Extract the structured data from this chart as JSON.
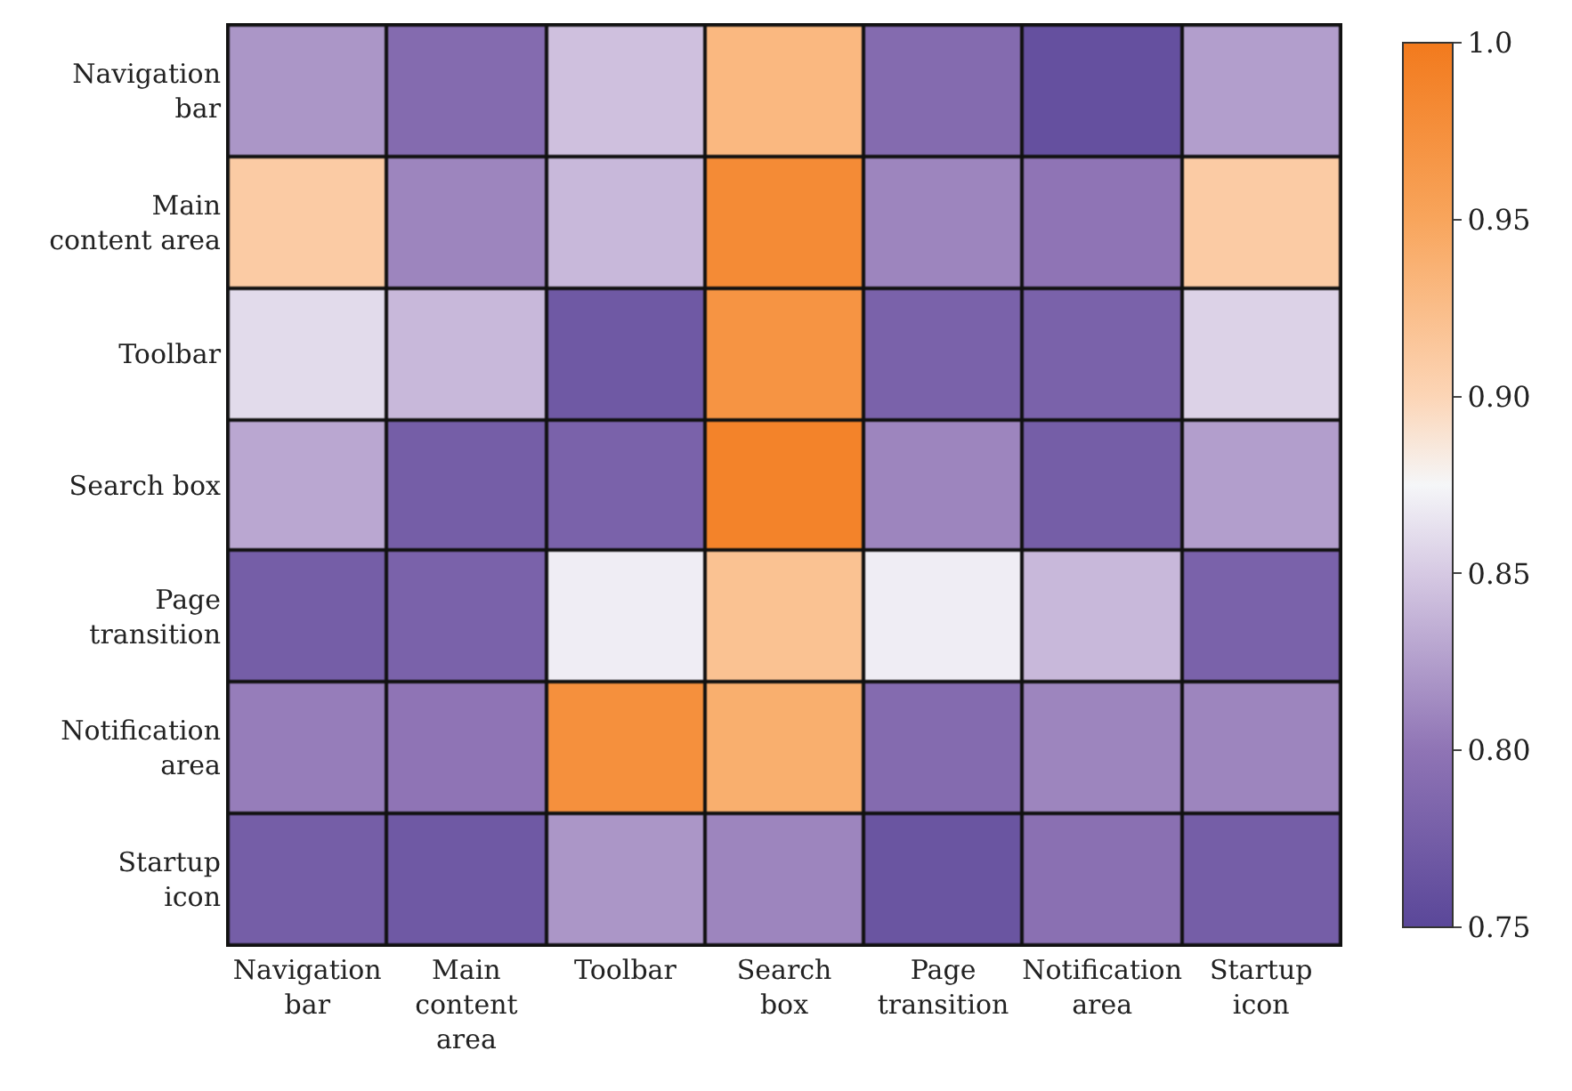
{
  "chart_data": {
    "type": "heatmap",
    "categories": [
      "Navigation bar",
      "Main content area",
      "Toolbar",
      "Search box",
      "Page transition",
      "Notification area",
      "Startup icon"
    ],
    "y_categories": [
      "Navigation bar",
      "Main content area",
      "Toolbar",
      "Search box",
      "Page transition",
      "Notification area",
      "Startup icon"
    ],
    "cells": [
      [
        0.82,
        0.79,
        0.845,
        0.93,
        0.79,
        0.76,
        0.825
      ],
      [
        0.91,
        0.81,
        0.84,
        0.98,
        0.81,
        0.8,
        0.91
      ],
      [
        0.86,
        0.84,
        0.77,
        0.97,
        0.78,
        0.78,
        0.855
      ],
      [
        0.83,
        0.775,
        0.78,
        0.99,
        0.81,
        0.775,
        0.825
      ],
      [
        0.775,
        0.78,
        0.87,
        0.92,
        0.87,
        0.84,
        0.78
      ],
      [
        0.805,
        0.8,
        0.975,
        0.94,
        0.79,
        0.81,
        0.81
      ],
      [
        0.775,
        0.77,
        0.82,
        0.81,
        0.765,
        0.795,
        0.775
      ]
    ],
    "clim": [
      0.75,
      1.0
    ],
    "cticks": [
      {
        "value": 0.75,
        "label": "0.75"
      },
      {
        "value": 0.8,
        "label": "0.80"
      },
      {
        "value": 0.85,
        "label": "0.85"
      },
      {
        "value": 0.9,
        "label": "0.90"
      },
      {
        "value": 0.95,
        "label": "0.95"
      },
      {
        "value": 1.0,
        "label": "1.0"
      }
    ]
  }
}
